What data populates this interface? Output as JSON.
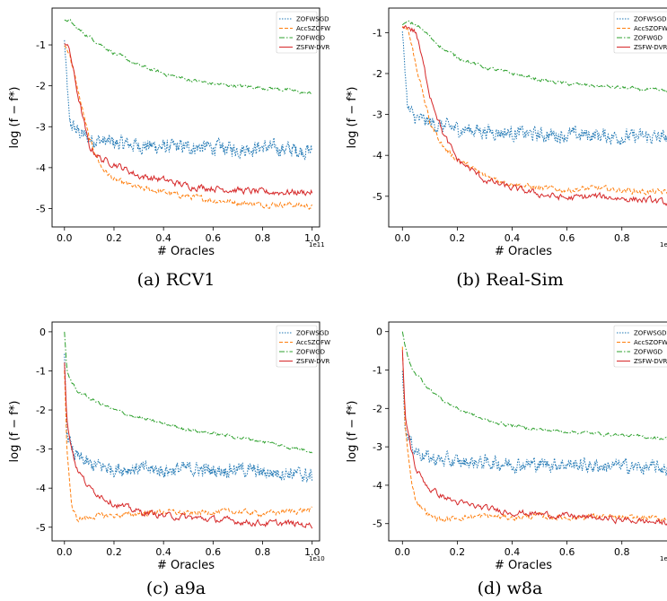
{
  "legend_entries": [
    {
      "name": "ZOFWSGD",
      "color": "#1f77b4",
      "dash": "1.5,1.5"
    },
    {
      "name": "AccSZOFW",
      "color": "#ff7f0e",
      "dash": "4,2"
    },
    {
      "name": "ZOFWGD",
      "color": "#2ca02c",
      "dash": "6,2,1.5,2"
    },
    {
      "name": "ZSFW-DVR",
      "color": "#d62728",
      "dash": ""
    }
  ],
  "chart_data": [
    {
      "type": "line",
      "caption": "(a) RCV1",
      "xlabel": "# Oracles",
      "ylabel": "log (f − f*)",
      "x_multiplier": "1e11",
      "xlim": [
        -0.05,
        1.03
      ],
      "ylim": [
        -5.45,
        -0.1
      ],
      "xticks": [
        "0.0",
        "0.2",
        "0.4",
        "0.6",
        "0.8",
        "1.0"
      ],
      "yticks": [
        "-1",
        "-2",
        "-3",
        "-4",
        "-5"
      ],
      "legend": "top-right",
      "x": [
        0.0,
        0.02,
        0.05,
        0.1,
        0.15,
        0.2,
        0.3,
        0.4,
        0.5,
        0.6,
        0.7,
        0.8,
        0.9,
        1.0
      ],
      "series": [
        {
          "name": "ZOFWSGD",
          "values": [
            -0.9,
            -2.9,
            -3.1,
            -3.3,
            -3.35,
            -3.4,
            -3.45,
            -3.5,
            -3.5,
            -3.5,
            -3.55,
            -3.5,
            -3.55,
            -3.6
          ]
        },
        {
          "name": "AccSZOFW",
          "values": [
            -1.0,
            -1.2,
            -2.0,
            -3.3,
            -4.0,
            -4.3,
            -4.5,
            -4.6,
            -4.7,
            -4.8,
            -4.85,
            -4.9,
            -4.9,
            -4.95
          ]
        },
        {
          "name": "ZOFWGD",
          "values": [
            -0.4,
            -0.4,
            -0.6,
            -0.8,
            -1.0,
            -1.2,
            -1.5,
            -1.7,
            -1.85,
            -1.95,
            -2.0,
            -2.05,
            -2.1,
            -2.2
          ]
        },
        {
          "name": "ZSFW-DVR",
          "values": [
            -0.95,
            -1.1,
            -2.1,
            -3.5,
            -3.8,
            -3.9,
            -4.2,
            -4.3,
            -4.45,
            -4.5,
            -4.55,
            -4.6,
            -4.6,
            -4.6
          ]
        }
      ]
    },
    {
      "type": "line",
      "caption": "(b) Real-Sim",
      "xlabel": "# Oracles",
      "ylabel": "log (f − f*)",
      "x_multiplier": "1e",
      "xlim": [
        -0.05,
        1.03
      ],
      "ylim": [
        -5.75,
        -0.4
      ],
      "xticks": [
        "0.0",
        "0.2",
        "0.4",
        "0.6",
        "0.8",
        "1.0"
      ],
      "yticks": [
        "-1",
        "-2",
        "-3",
        "-4",
        "-5"
      ],
      "legend": "top-right",
      "x": [
        0.0,
        0.02,
        0.05,
        0.1,
        0.15,
        0.2,
        0.3,
        0.4,
        0.5,
        0.6,
        0.7,
        0.8,
        0.9,
        1.0
      ],
      "series": [
        {
          "name": "ZOFWSGD",
          "values": [
            -1.0,
            -2.9,
            -3.1,
            -3.2,
            -3.3,
            -3.35,
            -3.4,
            -3.45,
            -3.5,
            -3.5,
            -3.5,
            -3.55,
            -3.55,
            -3.6
          ]
        },
        {
          "name": "AccSZOFW",
          "values": [
            -0.85,
            -0.9,
            -1.8,
            -3.2,
            -3.8,
            -4.1,
            -4.5,
            -4.7,
            -4.8,
            -4.85,
            -4.8,
            -4.85,
            -4.9,
            -4.9
          ]
        },
        {
          "name": "ZOFWGD",
          "values": [
            -0.8,
            -0.75,
            -0.8,
            -1.1,
            -1.4,
            -1.6,
            -1.85,
            -2.0,
            -2.15,
            -2.25,
            -2.3,
            -2.35,
            -2.4,
            -2.45
          ]
        },
        {
          "name": "ZSFW-DVR",
          "values": [
            -0.85,
            -0.85,
            -1.0,
            -2.5,
            -3.5,
            -4.1,
            -4.6,
            -4.8,
            -4.95,
            -5.05,
            -5.0,
            -5.05,
            -5.1,
            -5.2
          ]
        }
      ]
    },
    {
      "type": "line",
      "caption": "(c) a9a",
      "xlabel": "# Oracles",
      "ylabel": "log (f − f*)",
      "x_multiplier": "1e10",
      "xlim": [
        -0.05,
        1.03
      ],
      "ylim": [
        -5.35,
        0.25
      ],
      "xticks": [
        "0.0",
        "0.2",
        "0.4",
        "0.6",
        "0.8",
        "1.0"
      ],
      "yticks": [
        "0",
        "-1",
        "-2",
        "-3",
        "-4",
        "-5"
      ],
      "legend": "top-right",
      "x": [
        0.0,
        0.01,
        0.03,
        0.05,
        0.1,
        0.15,
        0.2,
        0.3,
        0.4,
        0.5,
        0.6,
        0.7,
        0.8,
        0.9,
        1.0
      ],
      "series": [
        {
          "name": "ZOFWSGD",
          "values": [
            -0.6,
            -2.6,
            -3.0,
            -3.2,
            -3.4,
            -3.45,
            -3.5,
            -3.5,
            -3.55,
            -3.5,
            -3.55,
            -3.5,
            -3.6,
            -3.6,
            -3.7
          ]
        },
        {
          "name": "AccSZOFW",
          "values": [
            -1.0,
            -3.0,
            -4.5,
            -4.8,
            -4.75,
            -4.7,
            -4.7,
            -4.65,
            -4.6,
            -4.65,
            -4.6,
            -4.6,
            -4.65,
            -4.6,
            -4.55
          ]
        },
        {
          "name": "ZOFWGD",
          "values": [
            0.0,
            -1.0,
            -1.3,
            -1.5,
            -1.7,
            -1.85,
            -2.0,
            -2.2,
            -2.35,
            -2.5,
            -2.6,
            -2.7,
            -2.8,
            -2.95,
            -3.05
          ]
        },
        {
          "name": "ZSFW-DVR",
          "values": [
            -0.8,
            -2.3,
            -3.0,
            -3.5,
            -4.0,
            -4.2,
            -4.4,
            -4.6,
            -4.7,
            -4.75,
            -4.8,
            -4.85,
            -4.9,
            -4.9,
            -4.95
          ]
        }
      ]
    },
    {
      "type": "line",
      "caption": "(d) w8a",
      "xlabel": "# Oracles",
      "ylabel": "log (f − f*)",
      "x_multiplier": "1e",
      "xlim": [
        -0.05,
        1.03
      ],
      "ylim": [
        -5.45,
        0.25
      ],
      "xticks": [
        "0.0",
        "0.2",
        "0.4",
        "0.6",
        "0.8",
        "1.0"
      ],
      "yticks": [
        "0",
        "-1",
        "-2",
        "-3",
        "-4",
        "-5"
      ],
      "legend": "top-right",
      "x": [
        0.0,
        0.01,
        0.03,
        0.05,
        0.1,
        0.15,
        0.2,
        0.3,
        0.4,
        0.5,
        0.6,
        0.7,
        0.8,
        0.9,
        1.0
      ],
      "series": [
        {
          "name": "ZOFWSGD",
          "values": [
            -1.0,
            -2.5,
            -2.9,
            -3.1,
            -3.3,
            -3.35,
            -3.4,
            -3.4,
            -3.45,
            -3.45,
            -3.45,
            -3.5,
            -3.5,
            -3.55,
            -3.55
          ]
        },
        {
          "name": "AccSZOFW",
          "values": [
            -0.4,
            -2.5,
            -3.8,
            -4.4,
            -4.8,
            -4.9,
            -4.85,
            -4.8,
            -4.85,
            -4.8,
            -4.85,
            -4.8,
            -4.85,
            -4.85,
            -4.9
          ]
        },
        {
          "name": "ZOFWGD",
          "values": [
            0.0,
            -0.4,
            -0.9,
            -1.1,
            -1.5,
            -1.8,
            -2.0,
            -2.3,
            -2.45,
            -2.55,
            -2.6,
            -2.65,
            -2.7,
            -2.75,
            -2.8
          ]
        },
        {
          "name": "ZSFW-DVR",
          "values": [
            -0.5,
            -2.2,
            -3.0,
            -3.6,
            -4.1,
            -4.3,
            -4.45,
            -4.6,
            -4.7,
            -4.75,
            -4.8,
            -4.85,
            -4.9,
            -4.95,
            -5.0
          ]
        }
      ]
    }
  ]
}
